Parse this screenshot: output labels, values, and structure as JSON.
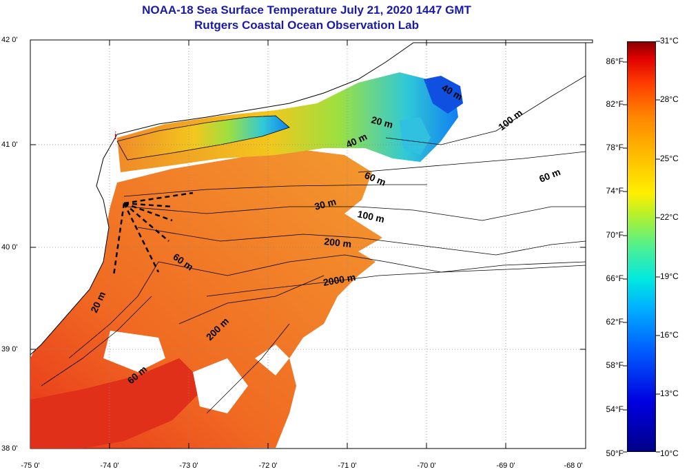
{
  "header": {
    "title": "NOAA-18 Sea Surface Temperature July 21, 2020 1447 GMT",
    "subtitle": "Rutgers Coastal Ocean Observation Lab"
  },
  "axes": {
    "lat_labels": [
      "42 0'",
      "41 0'",
      "40 0'",
      "39 0'",
      "38 0'"
    ],
    "lon_labels": [
      "-75 0'",
      "-74 0'",
      "-73 0'",
      "-72 0'",
      "-71 0'",
      "-70 0'",
      "-69 0'",
      "-68 0'"
    ]
  },
  "colorbar": {
    "fahrenheit": [
      "86°F",
      "82°F",
      "78°F",
      "74°F",
      "70°F",
      "66°F",
      "62°F",
      "58°F",
      "54°F",
      "50°F"
    ],
    "celsius": [
      "31°C",
      "28°C",
      "25°C",
      "22°C",
      "19°C",
      "16°C",
      "13°C",
      "10°C"
    ]
  },
  "map": {
    "marker": "i",
    "contour_labels": [
      "20 m",
      "40 m",
      "60 m",
      "100 m",
      "60 m",
      "30 m",
      "100 m",
      "200 m",
      "2000 m",
      "60 m",
      "20 m",
      "200 m",
      "60 m",
      "40 m"
    ]
  },
  "colors": {
    "title": "#1a1aa8",
    "warm": "#f07a1e",
    "hot": "#e23a18",
    "cool": "#f0c020",
    "cold": "#1060e8"
  }
}
